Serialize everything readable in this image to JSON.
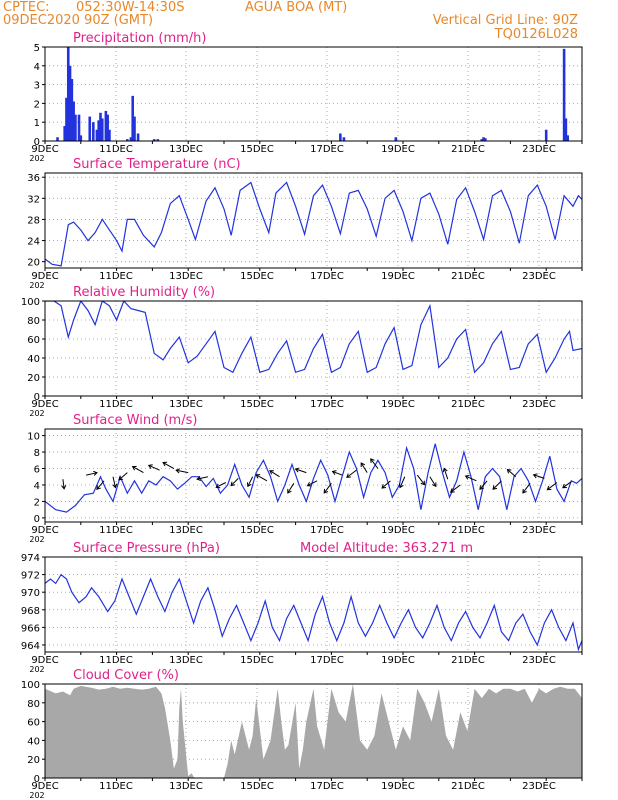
{
  "header": {
    "source": "CPTEC:",
    "coords": "052:30W-14:30S",
    "location": "AGUA BOA (MT)",
    "run": "09DEC2020 90Z (GMT)",
    "grid_note": "Vertical Grid Line: 90Z",
    "code": "TQ0126L028"
  },
  "colors": {
    "header": "#e8882a",
    "title": "#e0218a",
    "series": "#2233dd",
    "cloud": "#a8a8a8",
    "grid": "#9a9a9a"
  },
  "date_labels": [
    "9DEC",
    "11DEC",
    "13DEC",
    "15DEC",
    "17DEC",
    "19DEC",
    "21DEC",
    "23DEC"
  ],
  "year_stub": "202",
  "chart_data": [
    {
      "type": "bar",
      "title": "Precipitation (mm/h)",
      "yticks": [
        0,
        1,
        2,
        3,
        4,
        5
      ],
      "ylim": [
        0,
        5
      ],
      "xlim": [
        0,
        15
      ],
      "x": [
        0.35,
        0.55,
        0.6,
        0.65,
        0.7,
        0.75,
        0.8,
        0.85,
        0.95,
        1.0,
        1.25,
        1.35,
        1.45,
        1.5,
        1.55,
        1.6,
        1.7,
        1.75,
        1.8,
        2.3,
        2.4,
        2.45,
        2.5,
        2.6,
        3.05,
        3.15,
        8.25,
        8.35,
        9.8,
        12.2,
        12.25,
        12.3,
        14.0,
        14.5,
        14.55,
        14.6
      ],
      "values": [
        0.2,
        0.8,
        2.3,
        5.0,
        4.0,
        3.3,
        2.1,
        1.4,
        1.4,
        0.3,
        1.3,
        1.0,
        0.6,
        1.1,
        1.5,
        1.2,
        1.6,
        1.4,
        0.6,
        0.1,
        0.2,
        2.4,
        1.3,
        0.4,
        0.1,
        0.1,
        0.4,
        0.2,
        0.2,
        0.1,
        0.2,
        0.15,
        0.6,
        4.9,
        1.2,
        0.3
      ]
    },
    {
      "type": "line",
      "title": "Surface Temperature (nC)",
      "yticks": [
        20,
        24,
        28,
        32,
        36
      ],
      "ylim": [
        18.8,
        36.8
      ],
      "xlim": [
        0,
        15
      ],
      "x": [
        0,
        0.2,
        0.45,
        0.55,
        0.65,
        0.8,
        1.0,
        1.2,
        1.4,
        1.6,
        1.75,
        2.0,
        2.15,
        2.3,
        2.5,
        2.75,
        3.05,
        3.25,
        3.5,
        3.75,
        4.0,
        4.2,
        4.5,
        4.75,
        5.0,
        5.2,
        5.45,
        5.75,
        6.0,
        6.25,
        6.45,
        6.75,
        7.0,
        7.25,
        7.5,
        7.75,
        8.0,
        8.25,
        8.5,
        8.75,
        9.0,
        9.25,
        9.5,
        9.75,
        10.0,
        10.25,
        10.5,
        10.75,
        11.0,
        11.25,
        11.5,
        11.75,
        12.0,
        12.25,
        12.5,
        12.75,
        13.0,
        13.25,
        13.5,
        13.75,
        14.0,
        14.25,
        14.5,
        14.75,
        14.9,
        15.0
      ],
      "values": [
        20.5,
        19.5,
        19.2,
        23.0,
        27.0,
        27.5,
        26.0,
        24.0,
        25.5,
        28.0,
        26.5,
        24.0,
        22.0,
        28.0,
        28.0,
        25.0,
        22.8,
        25.5,
        31.0,
        32.5,
        28.0,
        24.2,
        31.5,
        34.0,
        30.0,
        25.0,
        33.5,
        35.0,
        30.0,
        25.5,
        33.0,
        35.0,
        30.5,
        25.2,
        32.5,
        34.5,
        30.5,
        25.3,
        33.0,
        33.5,
        30.0,
        24.8,
        32.0,
        33.5,
        29.5,
        24.0,
        32.0,
        33.0,
        29.0,
        23.3,
        31.8,
        34.0,
        29.5,
        24.2,
        32.5,
        33.5,
        29.5,
        23.5,
        32.5,
        34.5,
        30.5,
        24.2,
        32.5,
        30.5,
        32.5,
        31.8
      ]
    },
    {
      "type": "line",
      "title": "Relative Humidity (%)",
      "yticks": [
        0,
        20,
        40,
        60,
        80,
        100
      ],
      "ylim": [
        0,
        100
      ],
      "xlim": [
        0,
        15
      ],
      "x": [
        0,
        0.25,
        0.45,
        0.65,
        0.8,
        1.0,
        1.2,
        1.4,
        1.6,
        1.8,
        2.0,
        2.2,
        2.4,
        2.6,
        2.8,
        3.05,
        3.3,
        3.5,
        3.75,
        4.0,
        4.25,
        4.5,
        4.75,
        5.0,
        5.25,
        5.5,
        5.75,
        6.0,
        6.25,
        6.5,
        6.75,
        7.0,
        7.25,
        7.5,
        7.75,
        8.0,
        8.25,
        8.5,
        8.75,
        9.0,
        9.25,
        9.5,
        9.75,
        10.0,
        10.25,
        10.5,
        10.75,
        11.0,
        11.25,
        11.5,
        11.75,
        12.0,
        12.25,
        12.5,
        12.75,
        13.0,
        13.25,
        13.5,
        13.75,
        14.0,
        14.25,
        14.5,
        14.65,
        14.75,
        15.0
      ],
      "values": [
        100,
        100,
        95,
        62,
        80,
        100,
        90,
        75,
        100,
        95,
        80,
        100,
        92,
        90,
        88,
        45,
        38,
        50,
        62,
        35,
        42,
        55,
        68,
        30,
        25,
        45,
        62,
        25,
        28,
        45,
        58,
        25,
        28,
        50,
        65,
        25,
        30,
        55,
        68,
        25,
        30,
        55,
        72,
        28,
        32,
        75,
        95,
        30,
        40,
        60,
        70,
        25,
        35,
        55,
        68,
        28,
        30,
        55,
        65,
        25,
        40,
        60,
        68,
        48,
        50
      ]
    },
    {
      "type": "line",
      "title": "Surface Wind (m/s)",
      "yticks": [
        0,
        2,
        4,
        6,
        8,
        10
      ],
      "ylim": [
        -0.5,
        10.8
      ],
      "xlim": [
        0,
        15
      ],
      "x": [
        0,
        0.3,
        0.6,
        0.85,
        1.1,
        1.35,
        1.55,
        1.7,
        1.9,
        2.1,
        2.3,
        2.5,
        2.7,
        2.9,
        3.1,
        3.3,
        3.5,
        3.7,
        3.9,
        4.1,
        4.3,
        4.5,
        4.7,
        4.9,
        5.1,
        5.3,
        5.5,
        5.7,
        5.9,
        6.1,
        6.3,
        6.5,
        6.7,
        6.9,
        7.1,
        7.3,
        7.5,
        7.7,
        7.9,
        8.1,
        8.3,
        8.5,
        8.7,
        8.9,
        9.1,
        9.3,
        9.5,
        9.7,
        9.9,
        10.1,
        10.3,
        10.5,
        10.7,
        10.9,
        11.1,
        11.3,
        11.5,
        11.7,
        11.9,
        12.1,
        12.3,
        12.5,
        12.7,
        12.9,
        13.1,
        13.3,
        13.5,
        13.7,
        13.9,
        14.1,
        14.3,
        14.5,
        14.7,
        14.85,
        15.0
      ],
      "values": [
        2.0,
        1.0,
        0.7,
        1.5,
        2.8,
        3.0,
        5.0,
        3.5,
        2.0,
        5.0,
        3.0,
        4.5,
        3.0,
        4.5,
        4.0,
        5.0,
        4.5,
        3.5,
        4.2,
        5.0,
        5.0,
        3.8,
        4.8,
        3.0,
        4.0,
        6.5,
        4.0,
        2.5,
        5.5,
        7.0,
        5.0,
        2.0,
        4.0,
        6.5,
        4.0,
        2.0,
        4.8,
        7.0,
        5.2,
        2.0,
        5.0,
        8.0,
        6.0,
        2.5,
        5.5,
        7.0,
        5.5,
        2.5,
        4.0,
        8.5,
        6.0,
        1.0,
        5.5,
        9.0,
        5.5,
        2.5,
        4.5,
        8.0,
        5.0,
        1.0,
        5.0,
        6.0,
        5.0,
        1.0,
        5.0,
        6.0,
        4.5,
        2.0,
        4.5,
        7.5,
        3.5,
        2.0,
        4.5,
        4.2,
        4.8
      ],
      "vectors": [
        {
          "x": 0.5,
          "y": 4.7,
          "u": 0.1,
          "v": -0.8
        },
        {
          "x": 1.15,
          "y": 5.2,
          "u": 0.9,
          "v": 0.2
        },
        {
          "x": 1.65,
          "y": 4.5,
          "u": -0.6,
          "v": -0.7
        },
        {
          "x": 1.9,
          "y": 5.0,
          "u": 0.2,
          "v": -0.9
        },
        {
          "x": 2.3,
          "y": 5.5,
          "u": -0.7,
          "v": -0.6
        },
        {
          "x": 2.75,
          "y": 5.5,
          "u": -0.9,
          "v": 0.5
        },
        {
          "x": 3.2,
          "y": 5.8,
          "u": -0.9,
          "v": 0.4
        },
        {
          "x": 3.6,
          "y": 6.0,
          "u": -0.9,
          "v": 0.5
        },
        {
          "x": 4.0,
          "y": 5.5,
          "u": -1.0,
          "v": 0.2
        },
        {
          "x": 4.55,
          "y": 5.0,
          "u": -0.9,
          "v": -0.2
        },
        {
          "x": 5.05,
          "y": 4.3,
          "u": -0.8,
          "v": -0.4
        },
        {
          "x": 5.4,
          "y": 4.8,
          "u": -0.6,
          "v": -0.6
        },
        {
          "x": 5.8,
          "y": 5.0,
          "u": -0.4,
          "v": -0.8
        },
        {
          "x": 6.2,
          "y": 4.5,
          "u": -0.9,
          "v": 0.5
        },
        {
          "x": 6.55,
          "y": 5.0,
          "u": -0.8,
          "v": 0.5
        },
        {
          "x": 6.95,
          "y": 4.2,
          "u": -0.5,
          "v": -0.8
        },
        {
          "x": 7.3,
          "y": 5.5,
          "u": -0.9,
          "v": 0.3
        },
        {
          "x": 7.6,
          "y": 4.5,
          "u": -0.8,
          "v": -0.4
        },
        {
          "x": 8.0,
          "y": 4.2,
          "u": -0.6,
          "v": -0.8
        },
        {
          "x": 8.3,
          "y": 5.2,
          "u": -0.8,
          "v": 0.3
        },
        {
          "x": 8.7,
          "y": 5.8,
          "u": -0.8,
          "v": -0.6
        },
        {
          "x": 9.0,
          "y": 5.5,
          "u": -0.5,
          "v": 0.8
        },
        {
          "x": 9.3,
          "y": 6.0,
          "u": -0.6,
          "v": 0.8
        },
        {
          "x": 9.65,
          "y": 4.5,
          "u": -0.7,
          "v": -0.6
        },
        {
          "x": 10.05,
          "y": 5.0,
          "u": -0.4,
          "v": -0.9
        },
        {
          "x": 10.4,
          "y": 5.2,
          "u": 0.6,
          "v": -0.8
        },
        {
          "x": 10.75,
          "y": 5.0,
          "u": 0.5,
          "v": -0.8
        },
        {
          "x": 11.25,
          "y": 4.7,
          "u": -0.3,
          "v": 0.9
        },
        {
          "x": 11.6,
          "y": 4.0,
          "u": -0.8,
          "v": -0.6
        },
        {
          "x": 12.05,
          "y": 4.5,
          "u": -0.9,
          "v": 0.4
        },
        {
          "x": 12.35,
          "y": 4.5,
          "u": -0.6,
          "v": -0.7
        },
        {
          "x": 12.75,
          "y": 4.5,
          "u": -0.7,
          "v": -0.7
        },
        {
          "x": 13.15,
          "y": 5.0,
          "u": -0.7,
          "v": 0.6
        },
        {
          "x": 13.55,
          "y": 4.2,
          "u": -0.6,
          "v": -0.8
        },
        {
          "x": 13.95,
          "y": 4.8,
          "u": -0.9,
          "v": 0.3
        },
        {
          "x": 14.3,
          "y": 4.3,
          "u": -0.8,
          "v": -0.6
        },
        {
          "x": 14.7,
          "y": 4.4,
          "u": -0.7,
          "v": -0.5
        }
      ]
    },
    {
      "type": "line",
      "title": "Surface Pressure (hPa)",
      "subtitle": "Model Altitude: 363.271 m",
      "yticks": [
        964,
        966,
        968,
        970,
        972,
        974
      ],
      "ylim": [
        963.2,
        974
      ],
      "xlim": [
        0,
        15
      ],
      "x": [
        0,
        0.15,
        0.3,
        0.45,
        0.6,
        0.75,
        0.95,
        1.15,
        1.3,
        1.5,
        1.75,
        1.95,
        2.15,
        2.35,
        2.55,
        2.75,
        2.95,
        3.15,
        3.35,
        3.55,
        3.75,
        3.95,
        4.15,
        4.35,
        4.55,
        4.75,
        4.95,
        5.15,
        5.35,
        5.55,
        5.75,
        5.95,
        6.15,
        6.35,
        6.55,
        6.75,
        6.95,
        7.15,
        7.35,
        7.55,
        7.75,
        7.95,
        8.15,
        8.35,
        8.55,
        8.75,
        8.95,
        9.15,
        9.35,
        9.55,
        9.75,
        9.95,
        10.15,
        10.35,
        10.55,
        10.75,
        10.95,
        11.15,
        11.35,
        11.55,
        11.75,
        11.95,
        12.15,
        12.35,
        12.55,
        12.75,
        12.95,
        13.15,
        13.35,
        13.55,
        13.75,
        13.95,
        14.15,
        14.35,
        14.55,
        14.75,
        14.9,
        15.0
      ],
      "values": [
        971.0,
        971.5,
        971.0,
        972.0,
        971.5,
        970.0,
        968.8,
        969.5,
        970.5,
        969.5,
        967.8,
        969.0,
        971.5,
        969.5,
        967.5,
        969.5,
        971.5,
        969.5,
        967.8,
        970.0,
        971.5,
        969.0,
        966.5,
        969.0,
        970.5,
        968.0,
        965.0,
        967.0,
        968.5,
        966.5,
        964.5,
        966.5,
        969.0,
        966.0,
        964.5,
        967.0,
        968.5,
        966.5,
        964.5,
        967.5,
        969.5,
        966.5,
        964.5,
        966.5,
        969.5,
        966.5,
        965.0,
        966.5,
        968.5,
        966.5,
        964.8,
        966.5,
        968.0,
        966.0,
        964.8,
        966.5,
        968.5,
        966.0,
        964.5,
        966.5,
        967.8,
        966.0,
        964.8,
        966.5,
        968.5,
        965.5,
        964.5,
        966.5,
        967.5,
        965.5,
        964.0,
        966.5,
        968.0,
        966.0,
        964.5,
        966.5,
        963.5,
        964.5
      ]
    },
    {
      "type": "area",
      "title": "Cloud Cover (%)",
      "yticks": [
        0,
        20,
        40,
        60,
        80,
        100
      ],
      "ylim": [
        0,
        100
      ],
      "xlim": [
        0,
        15
      ],
      "x": [
        0,
        0.3,
        0.5,
        0.7,
        0.8,
        1.0,
        1.3,
        1.5,
        1.7,
        1.9,
        2.1,
        2.3,
        2.5,
        2.7,
        2.9,
        3.1,
        3.25,
        3.35,
        3.5,
        3.6,
        3.7,
        3.75,
        3.8,
        3.85,
        4.0,
        4.1,
        4.15,
        4.25,
        4.5,
        4.8,
        5.0,
        5.1,
        5.2,
        5.3,
        5.5,
        5.7,
        5.8,
        5.9,
        6.1,
        6.3,
        6.5,
        6.6,
        6.7,
        6.8,
        7.0,
        7.1,
        7.2,
        7.3,
        7.5,
        7.6,
        7.8,
        8.0,
        8.2,
        8.4,
        8.6,
        8.8,
        9.0,
        9.2,
        9.4,
        9.6,
        9.8,
        10.0,
        10.2,
        10.4,
        10.6,
        10.8,
        11.0,
        11.2,
        11.4,
        11.6,
        11.8,
        12.0,
        12.2,
        12.4,
        12.6,
        12.8,
        13.0,
        13.2,
        13.4,
        13.6,
        13.8,
        14.0,
        14.2,
        14.4,
        14.6,
        14.8,
        15.0
      ],
      "values": [
        95,
        90,
        92,
        88,
        95,
        98,
        96,
        94,
        95,
        97,
        95,
        96,
        95,
        94,
        95,
        97,
        90,
        75,
        40,
        10,
        20,
        75,
        95,
        60,
        2,
        5,
        1,
        0,
        0,
        0,
        0,
        15,
        40,
        25,
        60,
        30,
        45,
        85,
        20,
        40,
        95,
        60,
        30,
        35,
        80,
        10,
        30,
        60,
        95,
        55,
        30,
        95,
        70,
        60,
        100,
        40,
        30,
        45,
        90,
        60,
        30,
        55,
        40,
        95,
        80,
        60,
        95,
        45,
        30,
        70,
        50,
        95,
        85,
        95,
        90,
        95,
        95,
        92,
        95,
        80,
        95,
        90,
        95,
        97,
        95,
        95,
        85
      ]
    }
  ]
}
